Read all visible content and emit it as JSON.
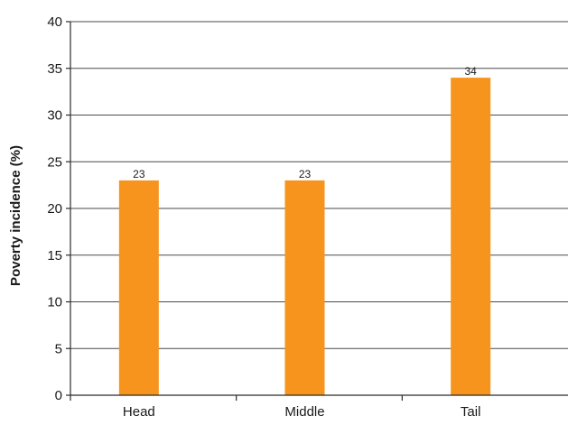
{
  "chart_data": {
    "type": "bar",
    "categories": [
      "Head",
      "Middle",
      "Tail"
    ],
    "values": [
      23,
      23,
      34
    ],
    "data_labels": [
      "23",
      "23",
      "34"
    ],
    "title": "",
    "xlabel": "",
    "ylabel": "Poverty incidence (%)",
    "ylim": [
      0,
      40
    ],
    "yticks": [
      0,
      5,
      10,
      15,
      20,
      25,
      30,
      35,
      40
    ],
    "grid": "horizontal",
    "legend": "none",
    "bar_color": "#F7941D"
  }
}
